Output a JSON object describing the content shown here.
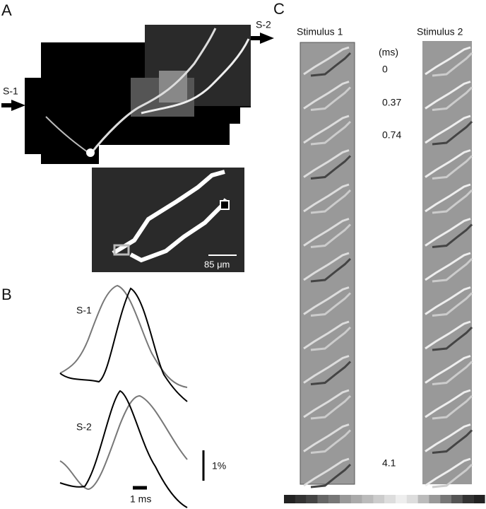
{
  "panel_a": {
    "label": "A",
    "arrow_right": "S-2",
    "arrow_left": "S-1",
    "scale_bar": "85 μm"
  },
  "panel_b": {
    "label": "B",
    "trace_top": "S-1",
    "trace_bottom": "S-2",
    "scale_vertical": "1%",
    "scale_horizontal": "1 ms"
  },
  "panel_c": {
    "label": "C",
    "columns": [
      "Stimulus 1",
      "Stimulus 2"
    ],
    "time_unit": "(ms)",
    "times": [
      "0",
      "0.37",
      "0.74",
      "4.1"
    ]
  }
}
